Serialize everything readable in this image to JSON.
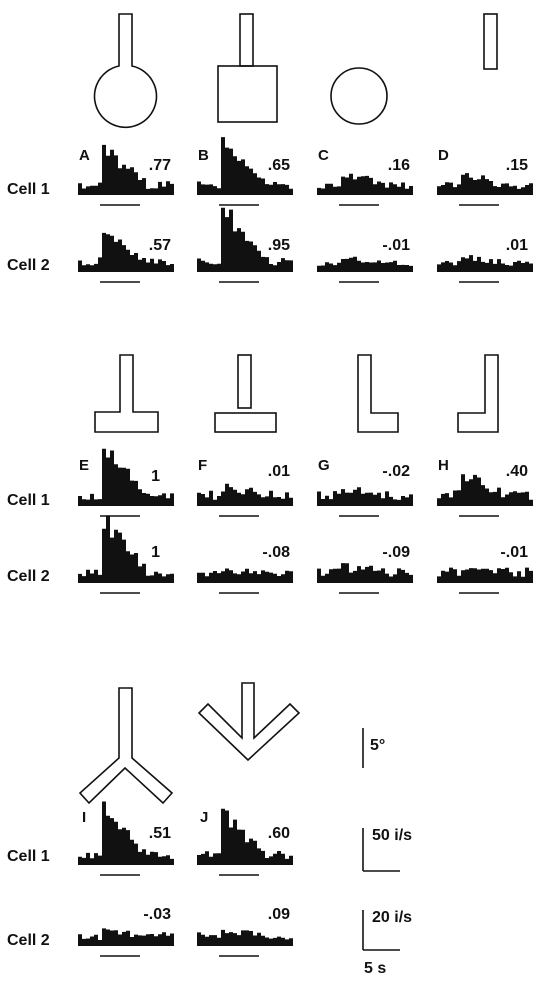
{
  "figure": {
    "row_labels": {
      "cell1": "Cell 1",
      "cell2": "Cell 2"
    },
    "panels": [
      {
        "letter": "A",
        "shape": "stem-circle",
        "r1": ".77",
        "r2": ".57"
      },
      {
        "letter": "B",
        "shape": "stem-square",
        "r1": ".65",
        "r2": ".95"
      },
      {
        "letter": "C",
        "shape": "circle",
        "r1": ".16",
        "r2": "-.01"
      },
      {
        "letter": "D",
        "shape": "bar",
        "r1": ".15",
        "r2": ".01"
      },
      {
        "letter": "E",
        "shape": "inverted-t",
        "r1": "1",
        "r2": "1"
      },
      {
        "letter": "F",
        "shape": "separated-t",
        "r1": ".01",
        "r2": "-.08"
      },
      {
        "letter": "G",
        "shape": "L-right",
        "r1": "-.02",
        "r2": "-.09"
      },
      {
        "letter": "H",
        "shape": "L-left",
        "r1": ".40",
        "r2": "-.01"
      },
      {
        "letter": "I",
        "shape": "Y",
        "r1": ".51",
        "r2": "-.03"
      },
      {
        "letter": "J",
        "shape": "arrow",
        "r1": ".60",
        "r2": ".09"
      }
    ],
    "scale": {
      "angle": "5°",
      "rate_cell1": "50 i/s",
      "rate_cell2": "20 i/s",
      "time": "5 s"
    }
  }
}
